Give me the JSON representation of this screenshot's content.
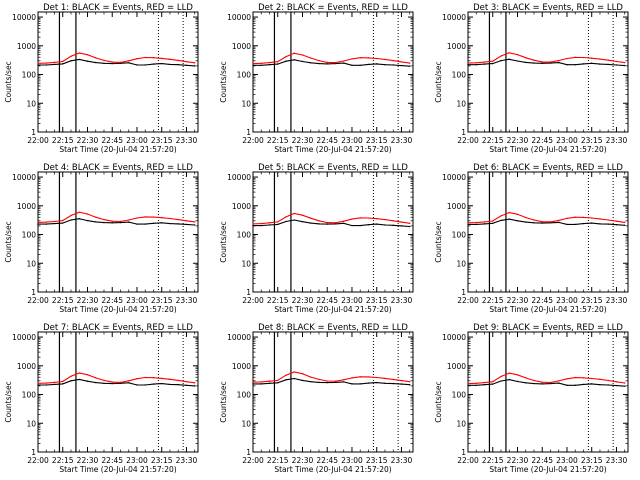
{
  "figure": {
    "xlabel": "Start Time (20-Jul-04 21:57:20)",
    "ylabel": "Counts/sec"
  },
  "chart_data": [
    {
      "type": "line",
      "title": "Det 1: BLACK = Events, RED = LLD",
      "xlabel": "Start Time (20-Jul-04 21:57:20)",
      "ylabel": "Counts/sec",
      "yscale": "log",
      "xlim": [
        "22:00",
        "23:37"
      ],
      "ylim": [
        1,
        15000
      ],
      "x_ticks": [
        "22:00",
        "22:15",
        "22:30",
        "22:45",
        "23:00",
        "23:15",
        "23:30"
      ],
      "y_ticks": [
        "1",
        "10",
        "100",
        "1000",
        "10000"
      ],
      "x": [
        "22:00",
        "22:05",
        "22:10",
        "22:15",
        "22:20",
        "22:25",
        "22:30",
        "22:35",
        "22:40",
        "22:45",
        "22:50",
        "22:55",
        "23:00",
        "23:05",
        "23:10",
        "23:15",
        "23:20",
        "23:25",
        "23:30",
        "23:35"
      ],
      "series": [
        {
          "name": "Events",
          "color": "#000000",
          "values": [
            215,
            215,
            225,
            235,
            300,
            335,
            290,
            260,
            245,
            240,
            245,
            255,
            215,
            215,
            230,
            240,
            225,
            220,
            210,
            200
          ]
        },
        {
          "name": "LLD",
          "color": "#ff0000",
          "values": [
            245,
            250,
            265,
            285,
            430,
            560,
            490,
            380,
            310,
            270,
            265,
            300,
            355,
            390,
            385,
            365,
            340,
            310,
            280,
            255
          ]
        }
      ],
      "vertical_lines": {
        "solid": [
          "22:13",
          "22:23"
        ],
        "dotted": [
          "23:13",
          "23:28"
        ]
      },
      "grid": false
    },
    {
      "type": "line",
      "title": "Det 2: BLACK = Events, RED = LLD",
      "xlabel": "Start Time (20-Jul-04 21:57:20)",
      "ylabel": "Counts/sec",
      "yscale": "log",
      "xlim": [
        "22:00",
        "23:37"
      ],
      "ylim": [
        1,
        15000
      ],
      "x_ticks": [
        "22:00",
        "22:15",
        "22:30",
        "22:45",
        "23:00",
        "23:15",
        "23:30"
      ],
      "y_ticks": [
        "1",
        "10",
        "100",
        "1000",
        "10000"
      ],
      "x": [
        "22:00",
        "22:05",
        "22:10",
        "22:15",
        "22:20",
        "22:25",
        "22:30",
        "22:35",
        "22:40",
        "22:45",
        "22:50",
        "22:55",
        "23:00",
        "23:05",
        "23:10",
        "23:15",
        "23:20",
        "23:25",
        "23:30",
        "23:35"
      ],
      "series": [
        {
          "name": "Events",
          "color": "#000000",
          "values": [
            210,
            210,
            220,
            230,
            290,
            325,
            285,
            255,
            240,
            235,
            240,
            250,
            210,
            210,
            225,
            235,
            220,
            215,
            205,
            195
          ]
        },
        {
          "name": "LLD",
          "color": "#ff0000",
          "values": [
            240,
            245,
            260,
            280,
            420,
            550,
            480,
            375,
            305,
            265,
            260,
            295,
            350,
            385,
            380,
            360,
            335,
            305,
            275,
            250
          ]
        }
      ],
      "vertical_lines": {
        "solid": [
          "22:13",
          "22:23"
        ],
        "dotted": [
          "23:13",
          "23:28"
        ]
      },
      "grid": false
    },
    {
      "type": "line",
      "title": "Det 3: BLACK = Events, RED = LLD",
      "xlabel": "Start Time (20-Jul-04 21:57:20)",
      "ylabel": "Counts/sec",
      "yscale": "log",
      "xlim": [
        "22:00",
        "23:37"
      ],
      "ylim": [
        1,
        15000
      ],
      "x_ticks": [
        "22:00",
        "22:15",
        "22:30",
        "22:45",
        "23:00",
        "23:15",
        "23:30"
      ],
      "y_ticks": [
        "1",
        "10",
        "100",
        "1000",
        "10000"
      ],
      "x": [
        "22:00",
        "22:05",
        "22:10",
        "22:15",
        "22:20",
        "22:25",
        "22:30",
        "22:35",
        "22:40",
        "22:45",
        "22:50",
        "22:55",
        "23:00",
        "23:05",
        "23:10",
        "23:15",
        "23:20",
        "23:25",
        "23:30",
        "23:35"
      ],
      "series": [
        {
          "name": "Events",
          "color": "#000000",
          "values": [
            220,
            220,
            230,
            240,
            305,
            340,
            295,
            265,
            250,
            245,
            250,
            260,
            220,
            220,
            235,
            245,
            230,
            225,
            215,
            205
          ]
        },
        {
          "name": "LLD",
          "color": "#ff0000",
          "values": [
            250,
            255,
            270,
            290,
            440,
            570,
            495,
            385,
            315,
            275,
            270,
            305,
            360,
            395,
            390,
            370,
            345,
            315,
            285,
            260
          ]
        }
      ],
      "vertical_lines": {
        "solid": [
          "22:13",
          "22:23"
        ],
        "dotted": [
          "23:13",
          "23:28"
        ]
      },
      "grid": false
    },
    {
      "type": "line",
      "title": "Det 4: BLACK = Events, RED = LLD",
      "xlabel": "Start Time (20-Jul-04 21:57:20)",
      "ylabel": "Counts/sec",
      "yscale": "log",
      "xlim": [
        "22:00",
        "23:37"
      ],
      "ylim": [
        1,
        15000
      ],
      "x_ticks": [
        "22:00",
        "22:15",
        "22:30",
        "22:45",
        "23:00",
        "23:15",
        "23:30"
      ],
      "y_ticks": [
        "1",
        "10",
        "100",
        "1000",
        "10000"
      ],
      "x": [
        "22:00",
        "22:05",
        "22:10",
        "22:15",
        "22:20",
        "22:25",
        "22:30",
        "22:35",
        "22:40",
        "22:45",
        "22:50",
        "22:55",
        "23:00",
        "23:05",
        "23:10",
        "23:15",
        "23:20",
        "23:25",
        "23:30",
        "23:35"
      ],
      "series": [
        {
          "name": "Events",
          "color": "#000000",
          "values": [
            230,
            230,
            240,
            250,
            320,
            355,
            305,
            275,
            260,
            255,
            260,
            270,
            230,
            230,
            245,
            255,
            240,
            235,
            225,
            215
          ]
        },
        {
          "name": "LLD",
          "color": "#ff0000",
          "values": [
            265,
            270,
            285,
            305,
            460,
            600,
            520,
            400,
            330,
            290,
            285,
            320,
            375,
            410,
            405,
            385,
            360,
            330,
            300,
            275
          ]
        }
      ],
      "vertical_lines": {
        "solid": [
          "22:13",
          "22:23"
        ],
        "dotted": [
          "23:13",
          "23:28"
        ]
      },
      "grid": false
    },
    {
      "type": "line",
      "title": "Det 5: BLACK = Events, RED = LLD",
      "xlabel": "Start Time (20-Jul-04 21:57:20)",
      "ylabel": "Counts/sec",
      "yscale": "log",
      "xlim": [
        "22:00",
        "23:37"
      ],
      "ylim": [
        1,
        15000
      ],
      "x_ticks": [
        "22:00",
        "22:15",
        "22:30",
        "22:45",
        "23:00",
        "23:15",
        "23:30"
      ],
      "y_ticks": [
        "1",
        "10",
        "100",
        "1000",
        "10000"
      ],
      "x": [
        "22:00",
        "22:05",
        "22:10",
        "22:15",
        "22:20",
        "22:25",
        "22:30",
        "22:35",
        "22:40",
        "22:45",
        "22:50",
        "22:55",
        "23:00",
        "23:05",
        "23:10",
        "23:15",
        "23:20",
        "23:25",
        "23:30",
        "23:35"
      ],
      "series": [
        {
          "name": "Events",
          "color": "#000000",
          "values": [
            205,
            205,
            215,
            225,
            285,
            320,
            280,
            250,
            235,
            230,
            235,
            245,
            205,
            205,
            220,
            230,
            215,
            210,
            200,
            190
          ]
        },
        {
          "name": "LLD",
          "color": "#ff0000",
          "values": [
            235,
            240,
            255,
            275,
            410,
            540,
            470,
            370,
            300,
            260,
            255,
            290,
            345,
            380,
            375,
            355,
            330,
            300,
            270,
            245
          ]
        }
      ],
      "vertical_lines": {
        "solid": [
          "22:13",
          "22:23"
        ],
        "dotted": [
          "23:13",
          "23:28"
        ]
      },
      "grid": false
    },
    {
      "type": "line",
      "title": "Det 6: BLACK = Events, RED = LLD",
      "xlabel": "Start Time (20-Jul-04 21:57:20)",
      "ylabel": "Counts/sec",
      "yscale": "log",
      "xlim": [
        "22:00",
        "23:37"
      ],
      "ylim": [
        1,
        15000
      ],
      "x_ticks": [
        "22:00",
        "22:15",
        "22:30",
        "22:45",
        "23:00",
        "23:15",
        "23:30"
      ],
      "y_ticks": [
        "1",
        "10",
        "100",
        "1000",
        "10000"
      ],
      "x": [
        "22:00",
        "22:05",
        "22:10",
        "22:15",
        "22:20",
        "22:25",
        "22:30",
        "22:35",
        "22:40",
        "22:45",
        "22:50",
        "22:55",
        "23:00",
        "23:05",
        "23:10",
        "23:15",
        "23:20",
        "23:25",
        "23:30",
        "23:35"
      ],
      "series": [
        {
          "name": "Events",
          "color": "#000000",
          "values": [
            225,
            225,
            235,
            245,
            310,
            345,
            300,
            270,
            255,
            250,
            255,
            265,
            225,
            225,
            240,
            250,
            235,
            230,
            220,
            210
          ]
        },
        {
          "name": "LLD",
          "color": "#ff0000",
          "values": [
            255,
            260,
            275,
            295,
            445,
            580,
            505,
            390,
            320,
            280,
            275,
            310,
            365,
            400,
            395,
            375,
            350,
            320,
            290,
            265
          ]
        }
      ],
      "vertical_lines": {
        "solid": [
          "22:13",
          "22:23"
        ],
        "dotted": [
          "23:13",
          "23:28"
        ]
      },
      "grid": false
    },
    {
      "type": "line",
      "title": "Det 7: BLACK = Events, RED = LLD",
      "xlabel": "Start Time (20-Jul-04 21:57:20)",
      "ylabel": "Counts/sec",
      "yscale": "log",
      "xlim": [
        "22:00",
        "23:37"
      ],
      "ylim": [
        1,
        15000
      ],
      "x_ticks": [
        "22:00",
        "22:15",
        "22:30",
        "22:45",
        "23:00",
        "23:15",
        "23:30"
      ],
      "y_ticks": [
        "1",
        "10",
        "100",
        "1000",
        "10000"
      ],
      "x": [
        "22:00",
        "22:05",
        "22:10",
        "22:15",
        "22:20",
        "22:25",
        "22:30",
        "22:35",
        "22:40",
        "22:45",
        "22:50",
        "22:55",
        "23:00",
        "23:05",
        "23:10",
        "23:15",
        "23:20",
        "23:25",
        "23:30",
        "23:35"
      ],
      "series": [
        {
          "name": "Events",
          "color": "#000000",
          "values": [
            215,
            215,
            225,
            235,
            300,
            335,
            290,
            260,
            245,
            240,
            245,
            255,
            215,
            215,
            230,
            240,
            225,
            220,
            210,
            200
          ]
        },
        {
          "name": "LLD",
          "color": "#ff0000",
          "values": [
            245,
            250,
            265,
            285,
            430,
            560,
            490,
            380,
            310,
            270,
            265,
            300,
            355,
            390,
            385,
            365,
            340,
            310,
            280,
            255
          ]
        }
      ],
      "vertical_lines": {
        "solid": [
          "22:13",
          "22:23"
        ],
        "dotted": [
          "23:13",
          "23:28"
        ]
      },
      "grid": false
    },
    {
      "type": "line",
      "title": "Det 8: BLACK = Events, RED = LLD",
      "xlabel": "Start Time (20-Jul-04 21:57:20)",
      "ylabel": "Counts/sec",
      "yscale": "log",
      "xlim": [
        "22:00",
        "23:37"
      ],
      "ylim": [
        1,
        15000
      ],
      "x_ticks": [
        "22:00",
        "22:15",
        "22:30",
        "22:45",
        "23:00",
        "23:15",
        "23:30"
      ],
      "y_ticks": [
        "1",
        "10",
        "100",
        "1000",
        "10000"
      ],
      "x": [
        "22:00",
        "22:05",
        "22:10",
        "22:15",
        "22:20",
        "22:25",
        "22:30",
        "22:35",
        "22:40",
        "22:45",
        "22:50",
        "22:55",
        "23:00",
        "23:05",
        "23:10",
        "23:15",
        "23:20",
        "23:25",
        "23:30",
        "23:35"
      ],
      "series": [
        {
          "name": "Events",
          "color": "#000000",
          "values": [
            235,
            235,
            245,
            255,
            325,
            360,
            310,
            280,
            265,
            260,
            265,
            275,
            235,
            235,
            250,
            260,
            245,
            240,
            230,
            220
          ]
        },
        {
          "name": "LLD",
          "color": "#ff0000",
          "values": [
            270,
            275,
            290,
            310,
            470,
            610,
            530,
            405,
            335,
            295,
            290,
            325,
            380,
            415,
            410,
            390,
            365,
            335,
            305,
            280
          ]
        }
      ],
      "vertical_lines": {
        "solid": [
          "22:13",
          "22:23"
        ],
        "dotted": [
          "23:13",
          "23:28"
        ]
      },
      "grid": false
    },
    {
      "type": "line",
      "title": "Det 9: BLACK = Events, RED = LLD",
      "xlabel": "Start Time (20-Jul-04 21:57:20)",
      "ylabel": "Counts/sec",
      "yscale": "log",
      "xlim": [
        "22:00",
        "23:37"
      ],
      "ylim": [
        1,
        15000
      ],
      "x_ticks": [
        "22:00",
        "22:15",
        "22:30",
        "22:45",
        "23:00",
        "23:15",
        "23:30"
      ],
      "y_ticks": [
        "1",
        "10",
        "100",
        "1000",
        "10000"
      ],
      "x": [
        "22:00",
        "22:05",
        "22:10",
        "22:15",
        "22:20",
        "22:25",
        "22:30",
        "22:35",
        "22:40",
        "22:45",
        "22:50",
        "22:55",
        "23:00",
        "23:05",
        "23:10",
        "23:15",
        "23:20",
        "23:25",
        "23:30",
        "23:35"
      ],
      "series": [
        {
          "name": "Events",
          "color": "#000000",
          "values": [
            210,
            210,
            220,
            230,
            295,
            330,
            285,
            255,
            240,
            235,
            240,
            250,
            210,
            210,
            225,
            235,
            220,
            215,
            205,
            195
          ]
        },
        {
          "name": "LLD",
          "color": "#ff0000",
          "values": [
            240,
            245,
            260,
            280,
            425,
            555,
            485,
            378,
            308,
            268,
            262,
            298,
            352,
            388,
            382,
            362,
            338,
            308,
            278,
            252
          ]
        }
      ],
      "vertical_lines": {
        "solid": [
          "22:13",
          "22:23"
        ],
        "dotted": [
          "23:13",
          "23:28"
        ]
      },
      "grid": false
    }
  ]
}
